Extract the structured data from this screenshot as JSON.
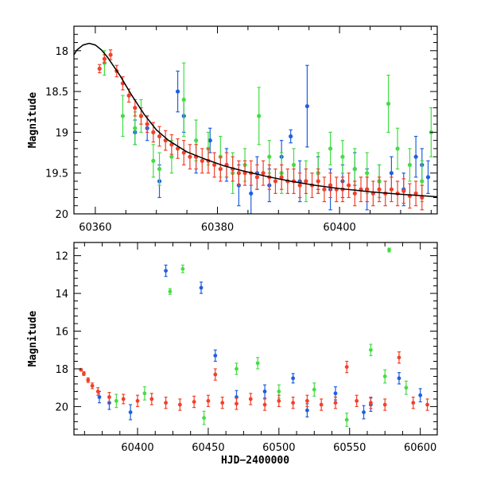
{
  "chart_data": [
    {
      "type": "scatter",
      "title": "",
      "xlabel": "",
      "ylabel": "Magnitude",
      "xlim": [
        60356.5,
        60416
      ],
      "ylim": [
        20,
        17.7
      ],
      "y_inverted": true,
      "grid": false,
      "xticks": [
        60360,
        60380,
        60400
      ],
      "yticks": [
        18,
        18.5,
        19,
        19.5,
        20
      ],
      "ytick_labels": [
        "18",
        "18.5",
        "19",
        "19.5",
        "20"
      ],
      "colors": {
        "blue": "#1f5fe0",
        "green": "#44dd44",
        "red": "#f2402a",
        "model": "#000000"
      },
      "model_curve": {
        "x": [
          60356.5,
          60357,
          60358,
          60359,
          60360,
          60361,
          60362,
          60364,
          60366,
          60368,
          60370,
          60372,
          60375,
          60378,
          60381,
          60384,
          60388,
          60392,
          60396,
          60400,
          60405,
          60410,
          60416
        ],
        "y": [
          18.05,
          17.99,
          17.93,
          17.91,
          17.93,
          17.99,
          18.08,
          18.3,
          18.55,
          18.78,
          18.97,
          19.1,
          19.24,
          19.33,
          19.41,
          19.47,
          19.54,
          19.6,
          19.65,
          19.69,
          19.73,
          19.76,
          19.79
        ]
      },
      "series": [
        {
          "color": "blue",
          "x": [
            60366.5,
            60368.5,
            60370.5,
            60373.5,
            60374.5,
            60376.5,
            60378.8,
            60381.5,
            60383.5,
            60385.5,
            60386.5,
            60388.5,
            60390.5,
            60392.0,
            60393.5,
            60394.7,
            60396.5,
            60398.5,
            60400.5,
            60402.5,
            60404.5,
            60406.5,
            60408.5,
            60410.5,
            60412.5,
            60413.5,
            60414.5
          ],
          "y": [
            19.0,
            18.95,
            19.6,
            18.5,
            18.8,
            19.3,
            19.1,
            19.4,
            19.65,
            19.75,
            19.5,
            19.65,
            19.3,
            19.05,
            19.6,
            18.68,
            19.5,
            19.7,
            19.6,
            19.45,
            19.7,
            19.6,
            19.5,
            19.7,
            19.3,
            19.4,
            19.55
          ],
          "err": [
            0.15,
            0.15,
            0.2,
            0.25,
            0.2,
            0.2,
            0.15,
            0.2,
            0.25,
            0.25,
            0.2,
            0.2,
            0.2,
            0.08,
            0.25,
            0.5,
            0.2,
            0.25,
            0.2,
            0.2,
            0.25,
            0.2,
            0.2,
            0.2,
            0.25,
            0.2,
            0.2
          ]
        },
        {
          "color": "green",
          "x": [
            60361.5,
            60364.5,
            60366.5,
            60367.5,
            60369.5,
            60370.5,
            60372.5,
            60374.5,
            60376.5,
            60378.5,
            60380.5,
            60382.5,
            60384.5,
            60386.8,
            60388.5,
            60390.5,
            60392.5,
            60394.5,
            60396.5,
            60398.5,
            60400.5,
            60402.5,
            60404.5,
            60406.5,
            60408.0,
            60409.5,
            60411.5,
            60413.5,
            60415.0
          ],
          "y": [
            18.15,
            18.8,
            18.95,
            18.8,
            19.35,
            19.45,
            19.3,
            18.6,
            19.1,
            19.2,
            19.3,
            19.5,
            19.4,
            18.8,
            19.3,
            19.5,
            19.4,
            19.6,
            19.5,
            19.2,
            19.3,
            19.45,
            19.5,
            19.6,
            18.65,
            19.2,
            19.4,
            19.6,
            19.0
          ],
          "err": [
            0.15,
            0.25,
            0.2,
            0.2,
            0.2,
            0.2,
            0.2,
            0.45,
            0.25,
            0.2,
            0.25,
            0.25,
            0.2,
            0.35,
            0.2,
            0.25,
            0.2,
            0.25,
            0.25,
            0.2,
            0.2,
            0.25,
            0.25,
            0.2,
            0.35,
            0.25,
            0.2,
            0.25,
            0.3
          ]
        },
        {
          "color": "red",
          "x": [
            60360.7,
            60361.5,
            60362.5,
            60363.5,
            60364.5,
            60365.5,
            60366.5,
            60367.5,
            60368.5,
            60369.5,
            60370.5,
            60371.5,
            60372.5,
            60373.5,
            60374.5,
            60375.5,
            60376.5,
            60377.5,
            60378.5,
            60379.5,
            60380.5,
            60381.5,
            60382.5,
            60383.5,
            60384.5,
            60385.5,
            60386.5,
            60387.5,
            60388.5,
            60389.5,
            60390.5,
            60391.5,
            60392.5,
            60393.5,
            60394.5,
            60395.5,
            60396.5,
            60397.5,
            60398.5,
            60399.5,
            60400.5,
            60401.5,
            60402.5,
            60403.5,
            60404.5,
            60405.5,
            60406.5,
            60407.5,
            60408.5,
            60409.5,
            60410.5,
            60411.5,
            60412.5,
            60413.5
          ],
          "y": [
            18.22,
            18.1,
            18.05,
            18.25,
            18.4,
            18.55,
            18.7,
            18.8,
            18.9,
            19.0,
            19.05,
            19.1,
            19.15,
            19.2,
            19.25,
            19.3,
            19.3,
            19.35,
            19.35,
            19.4,
            19.45,
            19.4,
            19.45,
            19.5,
            19.5,
            19.5,
            19.55,
            19.5,
            19.55,
            19.6,
            19.55,
            19.6,
            19.6,
            19.65,
            19.6,
            19.65,
            19.6,
            19.7,
            19.65,
            19.7,
            19.7,
            19.65,
            19.75,
            19.7,
            19.7,
            19.75,
            19.7,
            19.75,
            19.7,
            19.75,
            19.72,
            19.78,
            19.75,
            19.8
          ],
          "err": [
            0.05,
            0.05,
            0.06,
            0.07,
            0.08,
            0.08,
            0.1,
            0.1,
            0.1,
            0.12,
            0.12,
            0.12,
            0.12,
            0.12,
            0.15,
            0.15,
            0.15,
            0.15,
            0.15,
            0.15,
            0.15,
            0.15,
            0.15,
            0.15,
            0.15,
            0.15,
            0.15,
            0.15,
            0.15,
            0.15,
            0.15,
            0.15,
            0.15,
            0.15,
            0.15,
            0.15,
            0.15,
            0.15,
            0.15,
            0.15,
            0.15,
            0.15,
            0.15,
            0.15,
            0.15,
            0.15,
            0.15,
            0.15,
            0.15,
            0.15,
            0.15,
            0.15,
            0.15,
            0.15
          ]
        }
      ]
    },
    {
      "type": "scatter",
      "title": "",
      "xlabel": "HJD−2400000",
      "ylabel": "Magnitude",
      "xlim": [
        60355,
        60612
      ],
      "ylim": [
        21.5,
        11.3
      ],
      "y_inverted": true,
      "grid": false,
      "xticks": [
        60400,
        60450,
        60500,
        60550,
        60600
      ],
      "yticks": [
        12,
        14,
        16,
        18,
        20
      ],
      "ytick_labels": [
        "12",
        "14",
        "16",
        "18",
        "20"
      ],
      "colors": {
        "blue": "#1f5fe0",
        "green": "#44dd44",
        "red": "#f2402a"
      },
      "series": [
        {
          "color": "blue",
          "x": [
            60373,
            60380,
            60395,
            60420,
            60445,
            60455,
            60470,
            60490,
            60510,
            60520,
            60540,
            60560,
            60565,
            60585,
            60600
          ],
          "y": [
            19.5,
            19.8,
            20.3,
            12.8,
            13.7,
            17.3,
            19.5,
            19.2,
            18.5,
            20.2,
            19.3,
            20.3,
            19.9,
            18.5,
            19.4
          ],
          "err": [
            0.3,
            0.35,
            0.4,
            0.3,
            0.3,
            0.3,
            0.35,
            0.35,
            0.25,
            0.35,
            0.35,
            0.35,
            0.35,
            0.3,
            0.35
          ]
        },
        {
          "color": "green",
          "x": [
            60385,
            60405,
            60423,
            60432,
            60447,
            60470,
            60485,
            60500,
            60525,
            60548,
            60565,
            60575,
            60578,
            60590
          ],
          "y": [
            19.7,
            19.3,
            13.9,
            12.7,
            20.6,
            18.0,
            17.7,
            19.2,
            19.1,
            20.7,
            17.0,
            18.4,
            11.7,
            19.0
          ],
          "err": [
            0.35,
            0.35,
            0.15,
            0.2,
            0.35,
            0.3,
            0.3,
            0.35,
            0.35,
            0.35,
            0.3,
            0.35,
            0.1,
            0.35
          ]
        },
        {
          "color": "red",
          "x": [
            60360,
            60362,
            60365,
            60368,
            60372,
            60380,
            60390,
            60400,
            60410,
            60420,
            60430,
            60440,
            60450,
            60455,
            60460,
            60470,
            60480,
            60490,
            60500,
            60510,
            60520,
            60530,
            60540,
            60548,
            60555,
            60565,
            60575,
            60585,
            60595,
            60605
          ],
          "y": [
            18.05,
            18.25,
            18.6,
            18.9,
            19.2,
            19.5,
            19.6,
            19.7,
            19.6,
            19.8,
            19.9,
            19.75,
            19.7,
            18.3,
            19.8,
            19.85,
            19.6,
            19.9,
            19.7,
            19.8,
            19.7,
            19.9,
            19.8,
            17.9,
            19.7,
            19.8,
            19.9,
            17.4,
            19.8,
            19.9
          ],
          "err": [
            0.05,
            0.1,
            0.12,
            0.15,
            0.2,
            0.25,
            0.25,
            0.3,
            0.3,
            0.3,
            0.3,
            0.3,
            0.3,
            0.3,
            0.3,
            0.3,
            0.3,
            0.3,
            0.3,
            0.3,
            0.3,
            0.3,
            0.3,
            0.3,
            0.3,
            0.3,
            0.3,
            0.3,
            0.3,
            0.3
          ]
        }
      ]
    }
  ]
}
